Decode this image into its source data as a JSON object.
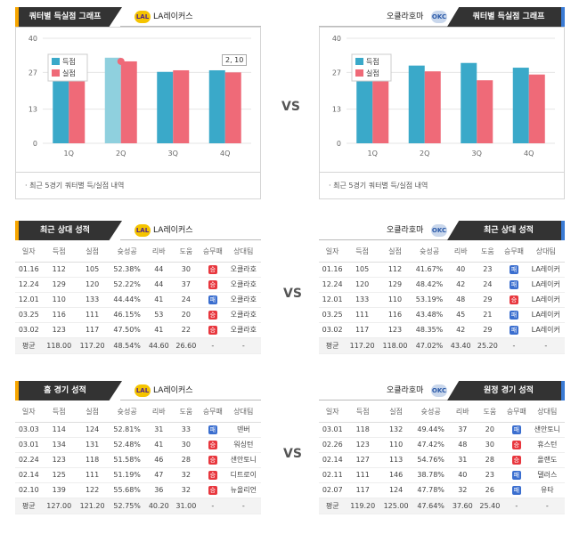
{
  "vs_label": "VS",
  "colors": {
    "scored": "#3aa9c9",
    "allowed": "#ef6a78",
    "dark_tab": "#333333",
    "win": "#e8373e",
    "loss": "#3a6ecf"
  },
  "quarter_panels": [
    {
      "tab_label": "쿼터별 득실점 그래프",
      "team": "LA레이커스",
      "logo": "LAL",
      "footer": "최근 5경기 쿼터별 득/실점 내역",
      "tooltip": "2, 10",
      "legend": [
        "득점",
        "실점"
      ]
    },
    {
      "tab_label": "쿼터별 득실점 그래프",
      "team": "오클라호마",
      "logo": "OKC",
      "footer": "최근 5경기 쿼터별 득/실점 내역",
      "legend": [
        "득점",
        "실점"
      ]
    }
  ],
  "chart_data": [
    {
      "type": "bar",
      "categories": [
        "1Q",
        "2Q",
        "3Q",
        "4Q"
      ],
      "ylim": [
        0,
        40
      ],
      "yticks": [
        0,
        13,
        27,
        40
      ],
      "series": [
        {
          "name": "득점",
          "values": [
            31,
            32.6,
            27.2,
            27.8
          ]
        },
        {
          "name": "실점",
          "values": [
            31.2,
            31.2,
            27.8,
            27.0
          ]
        }
      ]
    },
    {
      "type": "bar",
      "categories": [
        "1Q",
        "2Q",
        "3Q",
        "4Q"
      ],
      "ylim": [
        0,
        40
      ],
      "yticks": [
        0,
        13,
        27,
        40
      ],
      "series": [
        {
          "name": "득점",
          "values": [
            30.6,
            29.6,
            30.6,
            28.8
          ]
        },
        {
          "name": "실점",
          "values": [
            31.2,
            27.4,
            24.0,
            26.2
          ]
        }
      ]
    }
  ],
  "headers": [
    "일자",
    "득점",
    "실점",
    "슛성공",
    "리바",
    "도움",
    "승무패",
    "상대팀"
  ],
  "tables": [
    {
      "tab_label": "최근 상대 성적",
      "team": "LA레이커스",
      "logo": "LAL",
      "side": "left",
      "rows": [
        [
          "01.16",
          "112",
          "105",
          "52.38%",
          "44",
          "30",
          "승",
          "오클라호"
        ],
        [
          "12.24",
          "129",
          "120",
          "52.22%",
          "44",
          "37",
          "승",
          "오클라호"
        ],
        [
          "12.01",
          "110",
          "133",
          "44.44%",
          "41",
          "24",
          "패",
          "오클라호"
        ],
        [
          "03.25",
          "116",
          "111",
          "46.15%",
          "53",
          "20",
          "승",
          "오클라호"
        ],
        [
          "03.02",
          "123",
          "117",
          "47.50%",
          "41",
          "22",
          "승",
          "오클라호"
        ]
      ],
      "avg": [
        "평균",
        "118.00",
        "117.20",
        "48.54%",
        "44.60",
        "26.60",
        "-",
        "-"
      ]
    },
    {
      "tab_label": "최근 상대 성적",
      "team": "오클라호마",
      "logo": "OKC",
      "side": "right",
      "rows": [
        [
          "01.16",
          "105",
          "112",
          "41.67%",
          "40",
          "23",
          "패",
          "LA레이커"
        ],
        [
          "12.24",
          "120",
          "129",
          "48.42%",
          "42",
          "24",
          "패",
          "LA레이커"
        ],
        [
          "12.01",
          "133",
          "110",
          "53.19%",
          "48",
          "29",
          "승",
          "LA레이커"
        ],
        [
          "03.25",
          "111",
          "116",
          "43.48%",
          "45",
          "21",
          "패",
          "LA레이커"
        ],
        [
          "03.02",
          "117",
          "123",
          "48.35%",
          "42",
          "29",
          "패",
          "LA레이커"
        ]
      ],
      "avg": [
        "평균",
        "117.20",
        "118.00",
        "47.02%",
        "43.40",
        "25.20",
        "-",
        "-"
      ]
    },
    {
      "tab_label": "홈 경기 성적",
      "team": "LA레이커스",
      "logo": "LAL",
      "side": "left",
      "rows": [
        [
          "03.03",
          "114",
          "124",
          "52.81%",
          "31",
          "33",
          "패",
          "덴버"
        ],
        [
          "03.01",
          "134",
          "131",
          "52.48%",
          "41",
          "30",
          "승",
          "워싱턴"
        ],
        [
          "02.24",
          "123",
          "118",
          "51.58%",
          "46",
          "28",
          "승",
          "샌안토니"
        ],
        [
          "02.14",
          "125",
          "111",
          "51.19%",
          "47",
          "32",
          "승",
          "디트로이"
        ],
        [
          "02.10",
          "139",
          "122",
          "55.68%",
          "36",
          "32",
          "승",
          "뉴올리언"
        ]
      ],
      "avg": [
        "평균",
        "127.00",
        "121.20",
        "52.75%",
        "40.20",
        "31.00",
        "-",
        "-"
      ]
    },
    {
      "tab_label": "원정 경기 성적",
      "team": "오클라호마",
      "logo": "OKC",
      "side": "right",
      "rows": [
        [
          "03.01",
          "118",
          "132",
          "49.44%",
          "37",
          "20",
          "패",
          "샌안토니"
        ],
        [
          "02.26",
          "123",
          "110",
          "47.42%",
          "48",
          "30",
          "승",
          "휴스턴"
        ],
        [
          "02.14",
          "127",
          "113",
          "54.76%",
          "31",
          "28",
          "승",
          "올랜도"
        ],
        [
          "02.11",
          "111",
          "146",
          "38.78%",
          "40",
          "23",
          "패",
          "댈러스"
        ],
        [
          "02.07",
          "117",
          "124",
          "47.78%",
          "32",
          "26",
          "패",
          "유타"
        ]
      ],
      "avg": [
        "평균",
        "119.20",
        "125.00",
        "47.64%",
        "37.60",
        "25.40",
        "-",
        "-"
      ]
    }
  ]
}
